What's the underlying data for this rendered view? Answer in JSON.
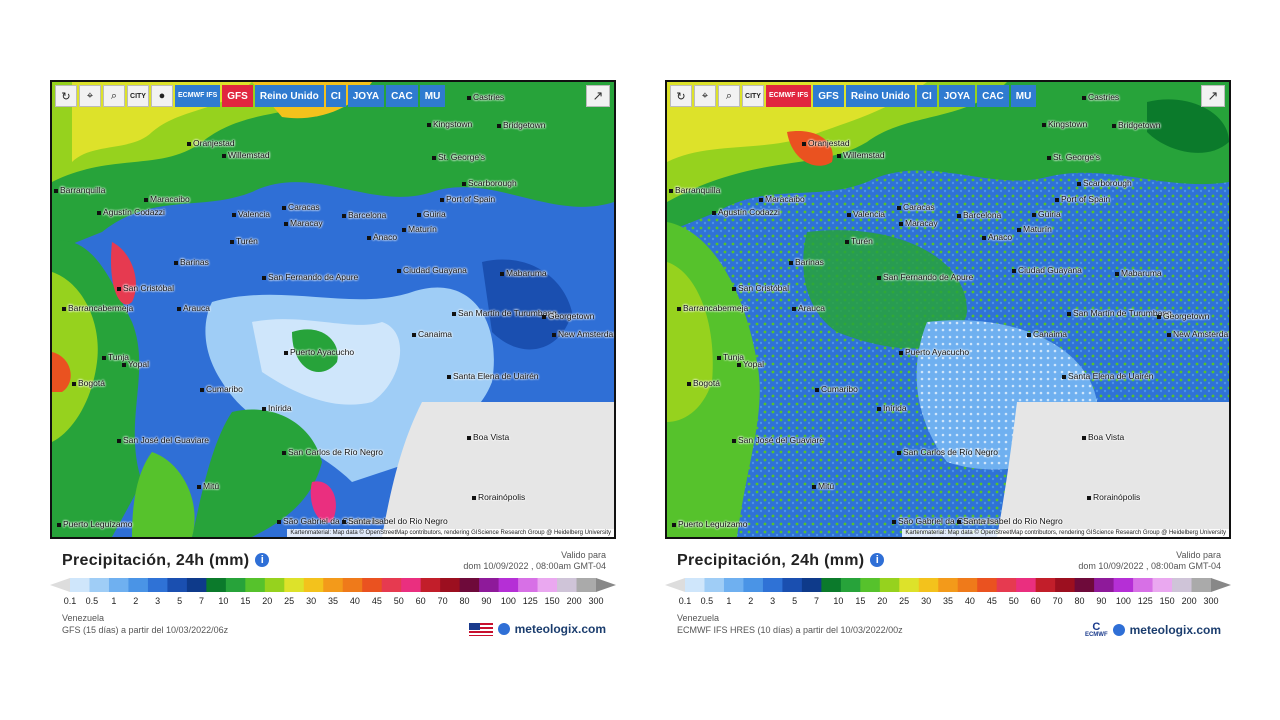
{
  "toolbar": {
    "reload_icon": "reload-icon",
    "locate_icon": "location-pin-icon",
    "zoom_icon": "zoom-icon",
    "city_label": "CITY",
    "dot_icon": "dot-icon",
    "share_icon": "share-icon"
  },
  "models": [
    "ECMWF IFS",
    "GFS",
    "Reino Unido",
    "CI",
    "JOYA",
    "CAC",
    "MU"
  ],
  "cities": [
    "Castries",
    "Kingstown",
    "Bridgetown",
    "Oranjestad",
    "Willemstad",
    "St. George's",
    "Scarborough",
    "Port of Spain",
    "Barranquilla",
    "Maracaibo",
    "Agustín Codazzi",
    "Valencia",
    "Caracas",
    "Maracay",
    "Barcelona",
    "Güiria",
    "Maturín",
    "Turén",
    "Anaco",
    "Barinas",
    "San Fernando de Apure",
    "Ciudad Guayana",
    "Mabaruma",
    "San Cristóbal",
    "Arauca",
    "Barrancabermeja",
    "Canaima",
    "San Martín de Turumbang",
    "Georgetown",
    "New Amsterdam",
    "Puerto Ayacucho",
    "Tunja",
    "Yopal",
    "Santa Elena de Uairén",
    "Bogotá",
    "Cumaribo",
    "Inírida",
    "Boa Vista",
    "San José del Guaviare",
    "San Carlos de Río Negro",
    "Mitú",
    "Rorainópolis",
    "Puerto Leguízamo",
    "São Gabriel da Cachoeira",
    "Santa Isabel do Rio Negro"
  ],
  "attribution": "Kartenmaterial: Map data © OpenStreetMap contributors, rendering GIScience Research Group @ Heidelberg University",
  "legend": {
    "title": "Precipitación, 24h (mm)",
    "valid_label": "Valido para",
    "valid_date": "dom 10/09/2022 , 08:00am GMT-04",
    "ticks": [
      "0.1",
      "0.5",
      "1",
      "2",
      "3",
      "5",
      "7",
      "10",
      "15",
      "20",
      "25",
      "30",
      "35",
      "40",
      "45",
      "50",
      "60",
      "70",
      "80",
      "90",
      "100",
      "125",
      "150",
      "200",
      "300"
    ],
    "colors": [
      "#cfe6fb",
      "#9fcdf6",
      "#6fb0f0",
      "#4a94e6",
      "#2f72d6",
      "#1a4fb0",
      "#0e3a8a",
      "#0b7a2b",
      "#27a33a",
      "#56c22c",
      "#96d21e",
      "#dde22a",
      "#f3c21c",
      "#f39a1a",
      "#ef7a1a",
      "#ea5220",
      "#e63a50",
      "#ea2f7f",
      "#c21e2a",
      "#9c0f1f",
      "#6e0a3a",
      "#8e1a9a",
      "#b52fd6",
      "#d770e6",
      "#eaa8f0",
      "#cfc4d8",
      "#aaaaaa"
    ]
  },
  "region": "Venezuela",
  "panels": [
    {
      "model_active": "GFS",
      "source": "GFS (15 días) a partir del 10/03/2022/06z",
      "brand": "meteologix.com",
      "flag_icon": "us-flag-icon"
    },
    {
      "model_active": "ECMWF IFS",
      "source": "ECMWF IFS HRES (10 días) a partir del 10/03/2022/00z",
      "brand": "meteologix.com",
      "logo_icon": "ecmwf-logo-icon",
      "logo_text": "ECMWF"
    }
  ]
}
